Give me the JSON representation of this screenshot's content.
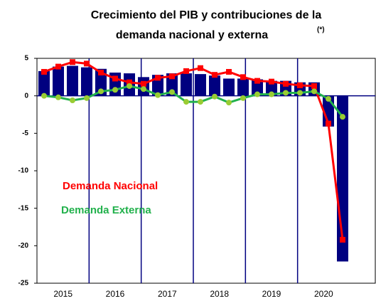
{
  "chart_data": {
    "type": "bar-line",
    "title": [
      "Crecimiento del PIB y contribuciones de la",
      "demanda nacional y externa"
    ],
    "title_note": "(*)",
    "categories": [
      null,
      null,
      null,
      null,
      null,
      null,
      null,
      null,
      null,
      null,
      null,
      null,
      null,
      null,
      null,
      null,
      null,
      null,
      null,
      null,
      null,
      null
    ],
    "years": [
      "2015",
      "2016",
      "2017",
      "2018",
      "2019",
      "2020"
    ],
    "values": [
      3.3,
      3.9,
      4.0,
      3.8,
      3.6,
      3.1,
      3.0,
      2.5,
      2.8,
      3.0,
      3.0,
      2.9,
      2.7,
      2.3,
      2.3,
      2.2,
      2.0,
      2.0,
      1.8,
      1.8,
      -4.1,
      -22.1
    ],
    "color": "#000080",
    "series": [
      {
        "name": "Demanda Nacional",
        "color": "#ff0000",
        "values": [
          3.2,
          3.9,
          4.5,
          4.3,
          3.1,
          2.3,
          1.8,
          1.6,
          2.4,
          2.6,
          3.3,
          3.7,
          2.8,
          3.2,
          2.5,
          2.0,
          1.9,
          1.6,
          1.4,
          1.3,
          -3.7,
          -19.2
        ]
      },
      {
        "name": "Demanda Externa",
        "color": "#22b14c",
        "values": [
          0.0,
          -0.2,
          -0.6,
          -0.3,
          0.6,
          0.8,
          1.3,
          0.9,
          0.1,
          0.5,
          -0.8,
          -0.8,
          -0.1,
          -0.9,
          -0.3,
          0.2,
          0.2,
          0.4,
          0.4,
          0.6,
          -0.4,
          -2.8
        ]
      }
    ],
    "ylim": [
      -25,
      5
    ],
    "yticks": [
      5,
      0,
      -5,
      -10,
      -15,
      -20,
      -25
    ]
  }
}
